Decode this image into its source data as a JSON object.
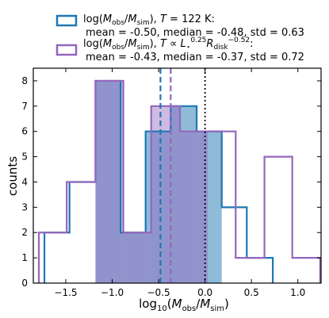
{
  "chart_data": {
    "type": "histogram",
    "xlabel": "log10(Mobs/Msim)",
    "ylabel": "counts",
    "xlim": [
      -1.85,
      1.25
    ],
    "ylim": [
      0,
      8.5
    ],
    "xticks": [
      -1.5,
      -1.0,
      -0.5,
      0.0,
      0.5,
      1.0
    ],
    "xtick_labels": [
      "−1.5",
      "−1.0",
      "−0.5",
      "0.0",
      "0.5",
      "1.0"
    ],
    "yticks": [
      0,
      1,
      2,
      3,
      4,
      5,
      6,
      7,
      8
    ],
    "grid": false,
    "legend_position": "top",
    "series": [
      {
        "name": "log(Mobs/Msim), T = 122 K",
        "legend_stats": "mean = -0.50, median = -0.48, std = 0.63",
        "color": "#1f77b4",
        "edges": [
          -1.73,
          -1.46,
          -1.18,
          -0.91,
          -0.64,
          -0.37,
          -0.09,
          0.18,
          0.45,
          0.73
        ],
        "counts": [
          2,
          4,
          8,
          2,
          6,
          7,
          6,
          3,
          1
        ],
        "mean": -0.5,
        "median": -0.48,
        "std": 0.63
      },
      {
        "name": "log(Mobs/Msim), T ∝ L*^0.25 Rdisk^-0.52",
        "legend_stats": "mean = -0.43, median = -0.37, std = 0.72",
        "color": "#9467bd",
        "edges": [
          -1.79,
          -1.49,
          -1.18,
          -0.88,
          -0.58,
          -0.27,
          0.03,
          0.33,
          0.64,
          0.94,
          1.24
        ],
        "counts": [
          2,
          4,
          8,
          2,
          7,
          6,
          6,
          1,
          5,
          1
        ],
        "mean": -0.43,
        "median": -0.37,
        "std": 0.72
      }
    ],
    "reference_lines": [
      {
        "x": -0.48,
        "style": "dashed",
        "color": "#1f77b4"
      },
      {
        "x": -0.37,
        "style": "dashed",
        "color": "#9467bd"
      },
      {
        "x": 0.0,
        "style": "dotted",
        "color": "#000000"
      }
    ]
  }
}
